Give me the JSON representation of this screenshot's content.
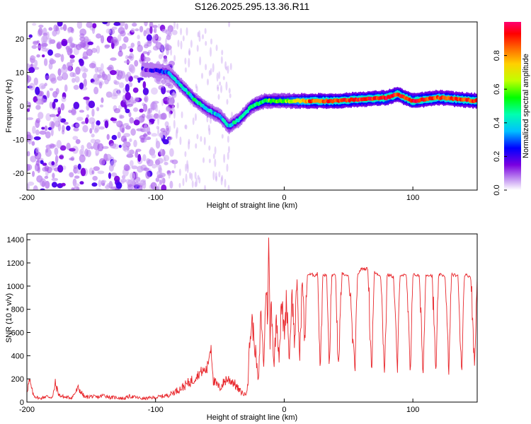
{
  "title": "S126.2025.295.13.36.R11",
  "colors": {
    "snr_line": "#e8262b",
    "frame": "#000000"
  },
  "chart_data": [
    {
      "type": "heatmap",
      "name": "spectrogram",
      "xlabel": "Height of straight line (km)",
      "ylabel": "Frequency (Hz)",
      "xlim": [
        -200,
        150
      ],
      "ylim": [
        -25,
        25
      ],
      "xticks": [
        -200,
        -100,
        0,
        100
      ],
      "yticks": [
        -20,
        -10,
        0,
        10,
        20
      ],
      "colorbar": {
        "label": "Normalized spectral amplitude",
        "ticks": [
          "0.0",
          "0.2",
          "0.4",
          "0.6",
          "0.8"
        ],
        "range": [
          0,
          1
        ],
        "colormap": "rainbow"
      },
      "noise_region_x": [
        -200,
        -85
      ],
      "ridge": {
        "x": [
          -110,
          -100,
          -90,
          -80,
          -70,
          -60,
          -50,
          -43,
          -35,
          -25,
          -15,
          0,
          20,
          40,
          60,
          80,
          88,
          100,
          120,
          150
        ],
        "y": [
          11,
          10.5,
          10,
          6,
          2,
          -1,
          -3,
          -6,
          -4,
          0,
          1.5,
          1.5,
          1.5,
          1.5,
          2,
          2.5,
          3.5,
          1.5,
          2.5,
          1.5
        ],
        "amp": [
          0.15,
          0.2,
          0.3,
          0.4,
          0.45,
          0.4,
          0.35,
          0.4,
          0.45,
          0.5,
          0.55,
          0.6,
          0.85,
          0.9,
          0.9,
          0.95,
          0.9,
          0.95,
          0.85,
          0.9
        ]
      }
    },
    {
      "type": "line",
      "name": "snr",
      "xlabel": "Height of straight line (km)",
      "ylabel": "SNR (10 * v/v)",
      "xlim": [
        -200,
        150
      ],
      "ylim": [
        0,
        1450
      ],
      "xticks": [
        -200,
        -100,
        0,
        100
      ],
      "yticks": [
        0,
        200,
        400,
        600,
        800,
        1000,
        1200,
        1400
      ],
      "series": [
        {
          "name": "SNR",
          "x": [
            -200,
            -198,
            -195,
            -192,
            -190,
            -185,
            -180,
            -178,
            -175,
            -170,
            -165,
            -160,
            -155,
            -150,
            -145,
            -140,
            -135,
            -130,
            -125,
            -120,
            -110,
            -100,
            -90,
            -80,
            -75,
            -70,
            -65,
            -60,
            -57,
            -55,
            -50,
            -45,
            -40,
            -35,
            -30,
            -28,
            -27,
            -25,
            -22,
            -20,
            -18,
            -16,
            -14,
            -13,
            -12,
            -11,
            -10,
            -8,
            -6,
            -4,
            -2,
            0,
            2,
            4,
            6,
            8,
            10,
            12,
            14,
            16,
            18,
            20,
            22,
            24,
            26,
            28,
            30,
            33,
            35,
            37,
            40,
            42,
            45,
            47,
            50,
            55,
            57,
            60,
            65,
            68,
            70,
            75,
            78,
            80,
            85,
            88,
            90,
            95,
            98,
            100,
            105,
            108,
            110,
            115,
            118,
            120,
            125,
            128,
            130,
            135,
            138,
            140,
            145,
            148,
            150
          ],
          "y": [
            100,
            180,
            60,
            40,
            30,
            50,
            40,
            160,
            60,
            40,
            40,
            120,
            40,
            50,
            40,
            60,
            40,
            40,
            30,
            50,
            30,
            40,
            60,
            120,
            160,
            200,
            260,
            280,
            500,
            180,
            120,
            200,
            180,
            100,
            60,
            200,
            500,
            700,
            400,
            150,
            800,
            300,
            1000,
            700,
            1450,
            500,
            900,
            300,
            750,
            400,
            850,
            600,
            900,
            350,
            1000,
            500,
            1050,
            350,
            1080,
            500,
            1100,
            1100,
            1100,
            1090,
            1110,
            280,
            1100,
            1090,
            280,
            1100,
            1090,
            260,
            1110,
            1100,
            1080,
            260,
            1100,
            1150,
            1150,
            260,
            1120,
            1090,
            250,
            1100,
            1080,
            260,
            1100,
            1090,
            250,
            1100,
            1090,
            240,
            1100,
            1090,
            230,
            1100,
            1090,
            250,
            1100,
            1090,
            260,
            1100,
            1080,
            300,
            1080
          ]
        }
      ]
    }
  ]
}
